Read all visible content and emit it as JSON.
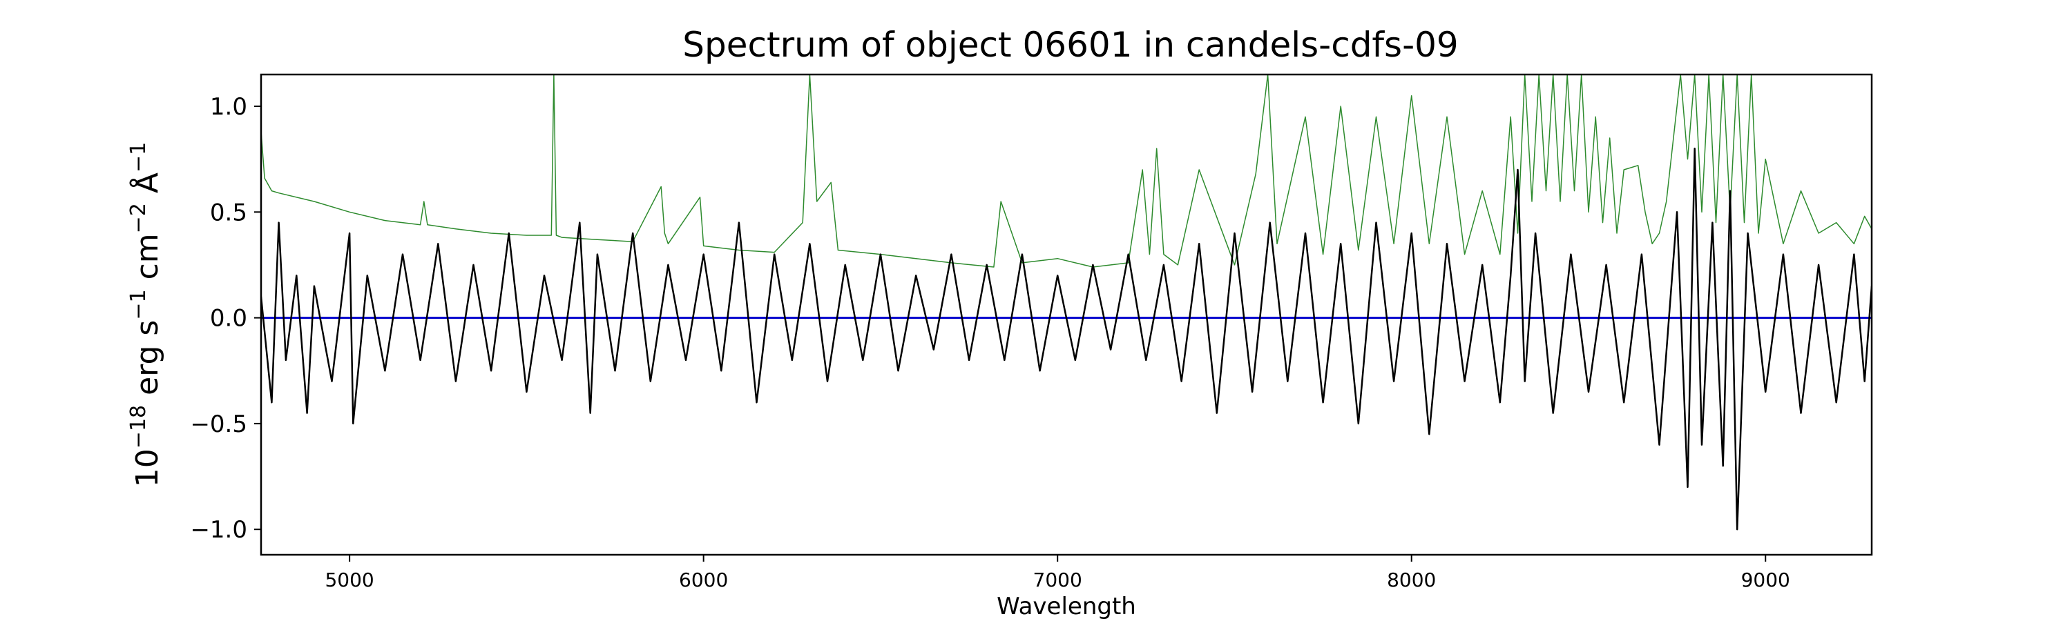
{
  "chart_data": {
    "type": "line",
    "title": "Spectrum of object 06601 in candels-cdfs-09",
    "xlabel": "Wavelength",
    "ylabel": {
      "base": "10",
      "exp1": "−18",
      "t1": " erg s",
      "exp2": "−1",
      "t2": " cm",
      "exp3": "−2",
      "t3": " Å",
      "exp4": "−1"
    },
    "xlim": [
      4750,
      9300
    ],
    "ylim": [
      -1.12,
      1.15
    ],
    "x_ticks": [
      5000,
      6000,
      7000,
      8000,
      9000
    ],
    "x_tick_labels": [
      "5000",
      "6000",
      "7000",
      "8000",
      "9000"
    ],
    "y_ticks": [
      -1.0,
      -0.5,
      0.0,
      0.5,
      1.0
    ],
    "y_tick_labels": [
      "−1.0",
      "−0.5",
      "0.0",
      "0.5",
      "1.0"
    ],
    "legend": "none",
    "grid": false,
    "series": [
      {
        "role": "error",
        "color": "#2e8b2e",
        "line_width": 1.5,
        "x": [
          4750,
          4760,
          4780,
          4800,
          4900,
          5000,
          5100,
          5200,
          5210,
          5220,
          5300,
          5400,
          5500,
          5570,
          5577,
          5584,
          5600,
          5700,
          5800,
          5880,
          5890,
          5900,
          5990,
          6000,
          6100,
          6200,
          6280,
          6300,
          6320,
          6360,
          6380,
          6500,
          6600,
          6700,
          6820,
          6840,
          6900,
          7000,
          7100,
          7200,
          7240,
          7260,
          7280,
          7300,
          7340,
          7400,
          7500,
          7560,
          7594,
          7620,
          7700,
          7750,
          7800,
          7850,
          7900,
          7950,
          8000,
          8050,
          8100,
          8150,
          8200,
          8250,
          8280,
          8300,
          8320,
          8340,
          8360,
          8380,
          8400,
          8420,
          8440,
          8460,
          8480,
          8500,
          8520,
          8540,
          8560,
          8580,
          8600,
          8640,
          8660,
          8680,
          8700,
          8720,
          8760,
          8780,
          8800,
          8820,
          8840,
          8860,
          8880,
          8900,
          8920,
          8940,
          8960,
          8980,
          9000,
          9050,
          9100,
          9150,
          9200,
          9250,
          9280,
          9300
        ],
        "y": [
          0.88,
          0.66,
          0.6,
          0.59,
          0.55,
          0.5,
          0.46,
          0.44,
          0.55,
          0.44,
          0.42,
          0.4,
          0.39,
          0.39,
          1.15,
          0.39,
          0.38,
          0.37,
          0.36,
          0.62,
          0.4,
          0.35,
          0.57,
          0.34,
          0.32,
          0.31,
          0.45,
          1.15,
          0.55,
          0.64,
          0.32,
          0.3,
          0.28,
          0.26,
          0.24,
          0.55,
          0.26,
          0.28,
          0.24,
          0.26,
          0.7,
          0.3,
          0.8,
          0.3,
          0.25,
          0.7,
          0.25,
          0.68,
          1.15,
          0.35,
          0.95,
          0.3,
          1.0,
          0.32,
          0.95,
          0.35,
          1.05,
          0.35,
          0.95,
          0.3,
          0.6,
          0.3,
          0.95,
          0.4,
          1.15,
          0.55,
          1.15,
          0.6,
          1.15,
          0.55,
          1.15,
          0.6,
          1.15,
          0.5,
          0.95,
          0.45,
          0.85,
          0.4,
          0.7,
          0.72,
          0.5,
          0.35,
          0.4,
          0.55,
          1.15,
          0.75,
          1.15,
          0.5,
          1.15,
          0.45,
          1.15,
          0.5,
          1.15,
          0.45,
          1.15,
          0.4,
          0.75,
          0.35,
          0.6,
          0.4,
          0.45,
          0.35,
          0.48,
          0.42
        ]
      },
      {
        "role": "zero",
        "color": "#0000cc",
        "line_width": 3,
        "x": [
          4750,
          9300
        ],
        "y": [
          0.0,
          0.0
        ]
      },
      {
        "role": "flux",
        "color": "#000000",
        "line_width": 2.5,
        "x": [
          4750,
          4780,
          4800,
          4820,
          4850,
          4880,
          4900,
          4950,
          5000,
          5010,
          5050,
          5100,
          5150,
          5200,
          5250,
          5300,
          5350,
          5400,
          5450,
          5500,
          5550,
          5600,
          5650,
          5680,
          5700,
          5750,
          5800,
          5850,
          5900,
          5950,
          6000,
          6050,
          6100,
          6150,
          6200,
          6250,
          6300,
          6350,
          6400,
          6450,
          6500,
          6550,
          6600,
          6650,
          6700,
          6750,
          6800,
          6850,
          6900,
          6950,
          7000,
          7050,
          7100,
          7150,
          7200,
          7250,
          7300,
          7350,
          7400,
          7450,
          7500,
          7550,
          7600,
          7650,
          7700,
          7750,
          7800,
          7850,
          7900,
          7950,
          8000,
          8050,
          8100,
          8150,
          8200,
          8250,
          8280,
          8300,
          8320,
          8350,
          8400,
          8450,
          8500,
          8550,
          8600,
          8650,
          8700,
          8750,
          8780,
          8800,
          8820,
          8850,
          8880,
          8900,
          8920,
          8950,
          9000,
          9050,
          9100,
          9150,
          9200,
          9250,
          9280,
          9300
        ],
        "y": [
          0.1,
          -0.4,
          0.45,
          -0.2,
          0.2,
          -0.45,
          0.15,
          -0.3,
          0.4,
          -0.5,
          0.2,
          -0.25,
          0.3,
          -0.2,
          0.35,
          -0.3,
          0.25,
          -0.25,
          0.4,
          -0.35,
          0.2,
          -0.2,
          0.45,
          -0.45,
          0.3,
          -0.25,
          0.4,
          -0.3,
          0.25,
          -0.2,
          0.3,
          -0.25,
          0.45,
          -0.4,
          0.3,
          -0.2,
          0.35,
          -0.3,
          0.25,
          -0.2,
          0.3,
          -0.25,
          0.2,
          -0.15,
          0.3,
          -0.2,
          0.25,
          -0.2,
          0.3,
          -0.25,
          0.2,
          -0.2,
          0.25,
          -0.15,
          0.3,
          -0.2,
          0.25,
          -0.3,
          0.35,
          -0.45,
          0.4,
          -0.35,
          0.45,
          -0.3,
          0.4,
          -0.4,
          0.35,
          -0.5,
          0.45,
          -0.3,
          0.4,
          -0.55,
          0.35,
          -0.3,
          0.25,
          -0.4,
          0.2,
          0.7,
          -0.3,
          0.4,
          -0.45,
          0.3,
          -0.35,
          0.25,
          -0.4,
          0.3,
          -0.6,
          0.5,
          -0.8,
          0.8,
          -0.6,
          0.45,
          -0.7,
          0.6,
          -1.0,
          0.4,
          -0.35,
          0.3,
          -0.45,
          0.25,
          -0.4,
          0.3,
          -0.3,
          0.15
        ]
      }
    ]
  }
}
